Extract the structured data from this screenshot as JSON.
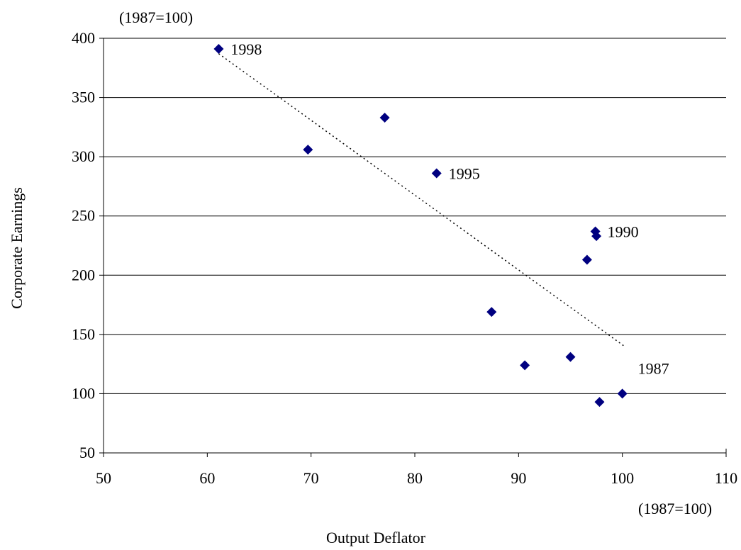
{
  "chart_data": {
    "type": "scatter",
    "xlabel": "Output Deflator",
    "ylabel": "Corporate Earnings",
    "x_unit": "(1987=100)",
    "y_unit": "(1987=100)",
    "xlim": [
      50,
      110
    ],
    "ylim": [
      50,
      400
    ],
    "xticks": [
      50,
      60,
      70,
      80,
      90,
      100,
      110
    ],
    "yticks": [
      50,
      100,
      150,
      200,
      250,
      300,
      350,
      400
    ],
    "grid": "horizontal",
    "marker_color": "#000080",
    "points": [
      {
        "x": 100.0,
        "y": 100,
        "label": "1987"
      },
      {
        "x": 97.8,
        "y": 93,
        "label": ""
      },
      {
        "x": 95.0,
        "y": 131,
        "label": ""
      },
      {
        "x": 97.4,
        "y": 237,
        "label": "1990"
      },
      {
        "x": 97.5,
        "y": 233,
        "label": ""
      },
      {
        "x": 96.6,
        "y": 213,
        "label": ""
      },
      {
        "x": 90.6,
        "y": 124,
        "label": ""
      },
      {
        "x": 87.4,
        "y": 169,
        "label": ""
      },
      {
        "x": 82.1,
        "y": 286,
        "label": "1995"
      },
      {
        "x": 77.1,
        "y": 333,
        "label": ""
      },
      {
        "x": 69.7,
        "y": 306,
        "label": ""
      },
      {
        "x": 61.1,
        "y": 391,
        "label": "1998"
      }
    ],
    "trendline": {
      "style": "dotted",
      "x": [
        61.1,
        100.2
      ],
      "y": [
        387,
        140
      ]
    }
  }
}
